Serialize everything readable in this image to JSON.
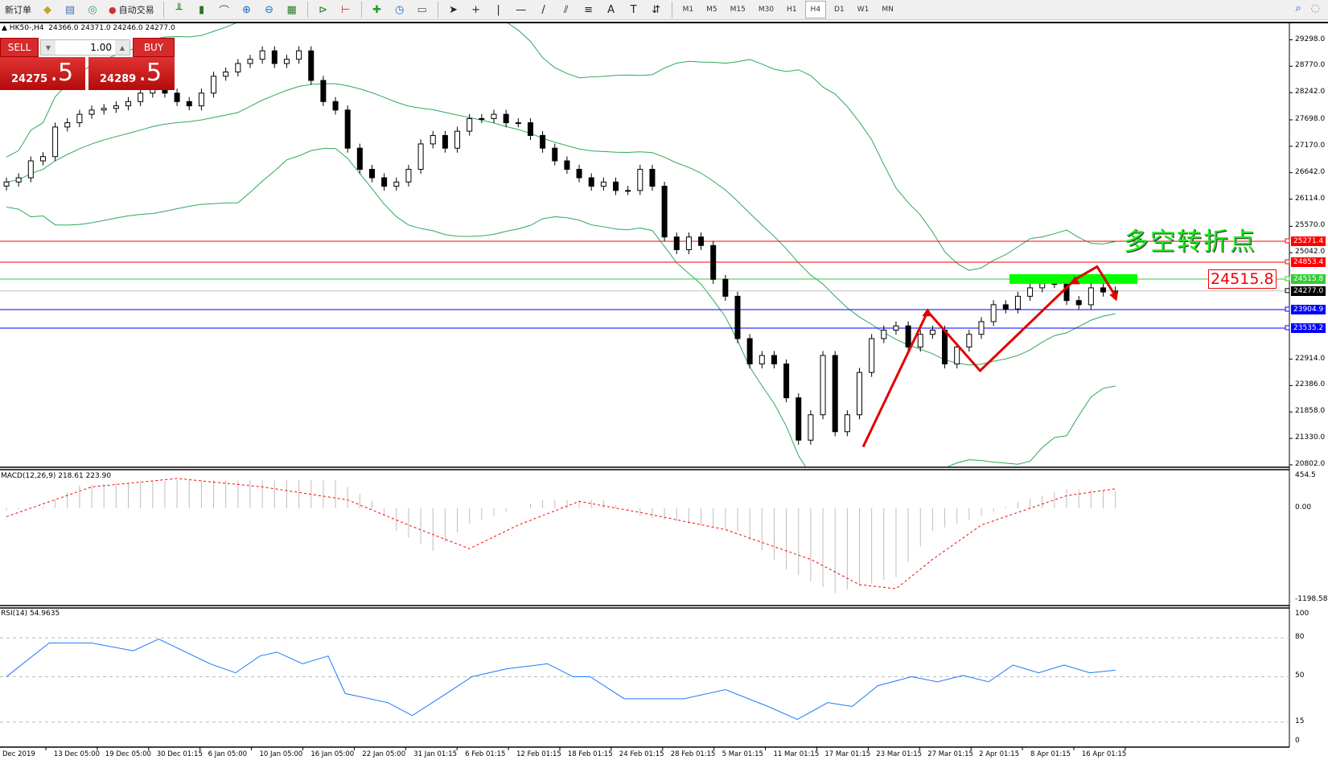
{
  "toolbar": {
    "items": [
      "新订单",
      "自动交易"
    ],
    "timeframes": [
      "M1",
      "M5",
      "M15",
      "M30",
      "H1",
      "H4",
      "D1",
      "W1",
      "MN"
    ],
    "active_timeframe": "H4"
  },
  "chart_header": {
    "symbol": "HK50-,H4",
    "ohlc": "24366.0 24371.0 24246.0 24277.0"
  },
  "trade_panel": {
    "sell_label": "SELL",
    "buy_label": "BUY",
    "lot": "1.00",
    "sell_big": "24275",
    "sell_small": ".5",
    "buy_big": "24289",
    "buy_small": ".5"
  },
  "annotation": {
    "text": "多空转折点",
    "box_label": "24515.8"
  },
  "colors": {
    "up_line": "#e00000",
    "green": "#00ff00",
    "blue": "#0000ff",
    "bands": "#2fa85a",
    "macd_signal": "#ff0000",
    "rsi": "#1e78ff"
  },
  "chart_data": [
    {
      "type": "candlestick",
      "title": "HK50-,H4",
      "ylim": [
        20802,
        29298
      ],
      "y_ticks": [
        "29298.0",
        "28770.0",
        "28242.0",
        "27698.0",
        "27170.0",
        "26642.0",
        "26114.0",
        "25570.0",
        "25042.0",
        "22914.0",
        "22386.0",
        "21858.0",
        "21330.0",
        "20802.0"
      ],
      "x_ticks": [
        "Dec 2019",
        "13 Dec 05:00",
        "19 Dec 05:00",
        "30 Dec 01:15",
        "6 Jan 05:00",
        "10 Jan 05:00",
        "16 Jan 05:00",
        "22 Jan 05:00",
        "31 Jan 01:15",
        "6 Feb 01:15",
        "12 Feb 01:15",
        "18 Feb 01:15",
        "24 Feb 01:15",
        "28 Feb 01:15",
        "5 Mar 01:15",
        "11 Mar 01:15",
        "17 Mar 01:15",
        "23 Mar 01:15",
        "27 Mar 01:15",
        "2 Apr 01:15",
        "8 Apr 01:15",
        "16 Apr 01:15"
      ],
      "closes": [
        26455,
        26540,
        26878,
        26963,
        27555,
        27640,
        27809,
        27894,
        27927,
        27978,
        28063,
        28232,
        28401,
        28232,
        28063,
        27978,
        28232,
        28570,
        28655,
        28824,
        28909,
        29078,
        28824,
        28909,
        29078,
        28486,
        28063,
        27894,
        27132,
        26709,
        26540,
        26371,
        26455,
        26709,
        27217,
        27386,
        27132,
        27471,
        27724,
        27724,
        27809,
        27640,
        27640,
        27386,
        27132,
        26878,
        26709,
        26540,
        26371,
        26455,
        26286,
        26286,
        26709,
        26371,
        25356,
        25102,
        25356,
        25186,
        24510,
        24171,
        23325,
        22818,
        22987,
        22818,
        22141,
        21295,
        21802,
        22987,
        21464,
        21802,
        22648,
        23325,
        23494,
        23579,
        23156,
        23410,
        23494,
        22818,
        23156,
        23410,
        23664,
        24002,
        23917,
        24171,
        24340,
        24425,
        24425,
        24086,
        24002,
        24340,
        24256,
        24277
      ],
      "levels": [
        {
          "price": 25271.4,
          "label": "25271.4",
          "color": "#ff0000"
        },
        {
          "price": 24853.4,
          "label": "24853.4",
          "color": "#ff0000"
        },
        {
          "price": 24515.8,
          "label": "24515.8",
          "color": "#33cc33"
        },
        {
          "price": 24277.0,
          "label": "24277.0",
          "color": "#000000",
          "line": "#c0c0c0"
        },
        {
          "price": 23904.9,
          "label": "23904.9",
          "color": "#0000ff"
        },
        {
          "price": 23535.2,
          "label": "23535.2",
          "color": "#0000ff"
        }
      ],
      "zigzag": [
        [
          70.3,
          21160
        ],
        [
          75.6,
          23867
        ],
        [
          79.9,
          22682
        ],
        [
          87.7,
          24510
        ],
        [
          89.5,
          24764
        ],
        [
          91.1,
          24138
        ]
      ],
      "zone": {
        "from": 82.3,
        "to": 92.8,
        "price": 24515.8
      }
    },
    {
      "type": "bar",
      "title": "MACD(12,26,9) 218.61 223.90",
      "ylim": [
        -1198.58,
        454.5
      ],
      "y_ticks": [
        "454.5",
        "0.00",
        "-1198.58"
      ],
      "histogram": [
        [
          0,
          -30
        ],
        [
          3,
          20
        ],
        [
          6,
          300
        ],
        [
          14,
          366
        ],
        [
          27,
          366
        ],
        [
          30,
          100
        ],
        [
          32,
          -300
        ],
        [
          35,
          -555
        ],
        [
          38,
          -200
        ],
        [
          41,
          -50
        ],
        [
          44,
          110
        ],
        [
          49,
          110
        ],
        [
          52,
          -100
        ],
        [
          60,
          -300
        ],
        [
          64,
          -800
        ],
        [
          68,
          -1110
        ],
        [
          73,
          -900
        ],
        [
          76,
          -300
        ],
        [
          80,
          -100
        ],
        [
          83,
          80
        ],
        [
          87,
          250
        ],
        [
          91,
          230
        ]
      ],
      "signal": [
        [
          0,
          -110
        ],
        [
          7,
          280
        ],
        [
          14,
          390
        ],
        [
          21,
          280
        ],
        [
          28,
          110
        ],
        [
          33,
          -220
        ],
        [
          38,
          -530
        ],
        [
          42,
          -220
        ],
        [
          47,
          90
        ],
        [
          52,
          -55
        ],
        [
          59,
          -280
        ],
        [
          66,
          -670
        ],
        [
          70,
          -1000
        ],
        [
          73,
          -1055
        ],
        [
          76,
          -670
        ],
        [
          80,
          -220
        ],
        [
          83,
          -55
        ],
        [
          87,
          165
        ],
        [
          91,
          255
        ]
      ]
    },
    {
      "type": "line",
      "title": "RSI(14) 54.9635",
      "ylim": [
        0,
        100
      ],
      "y_ticks": [
        "100",
        "80",
        "50",
        "15",
        "0"
      ],
      "values": [
        [
          0,
          50
        ],
        [
          3.5,
          76
        ],
        [
          7,
          76
        ],
        [
          10.4,
          70
        ],
        [
          12.5,
          79
        ],
        [
          16.7,
          60
        ],
        [
          18.8,
          53
        ],
        [
          20.8,
          66
        ],
        [
          22.2,
          69
        ],
        [
          24.3,
          60
        ],
        [
          26.4,
          66
        ],
        [
          27.8,
          37
        ],
        [
          31.3,
          30
        ],
        [
          33.3,
          20
        ],
        [
          36.1,
          37
        ],
        [
          38.2,
          50
        ],
        [
          41,
          56
        ],
        [
          44.4,
          60
        ],
        [
          46.5,
          50
        ],
        [
          47.9,
          50
        ],
        [
          50.7,
          33
        ],
        [
          55.6,
          33
        ],
        [
          59,
          40
        ],
        [
          62.5,
          27
        ],
        [
          64.9,
          17
        ],
        [
          67.4,
          30
        ],
        [
          69.4,
          27
        ],
        [
          71.5,
          43
        ],
        [
          74.3,
          50
        ],
        [
          76.4,
          46
        ],
        [
          78.5,
          51
        ],
        [
          80.6,
          46
        ],
        [
          82.6,
          59
        ],
        [
          84.7,
          53
        ],
        [
          86.8,
          59
        ],
        [
          88.9,
          53
        ],
        [
          91,
          55
        ]
      ]
    }
  ]
}
